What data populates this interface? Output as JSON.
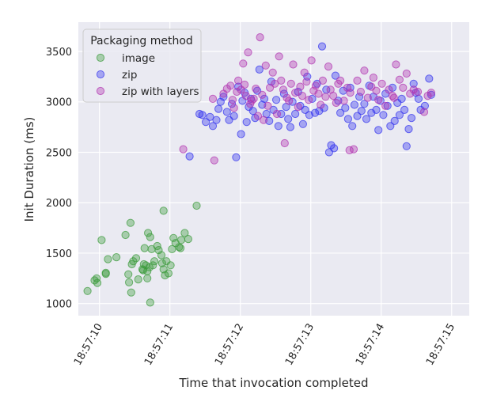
{
  "chart_data": {
    "type": "scatter",
    "xlabel": "Time that invocation completed",
    "ylabel": "Init Duration (ms)",
    "xlim": [
      9.7,
      15.25
    ],
    "ylim": [
      880,
      3790
    ],
    "x_unit": "seconds past 18:57:00",
    "x_ticks": [
      10,
      11,
      12,
      13,
      14,
      15
    ],
    "x_tick_labels": [
      "18:57:10",
      "18:57:11",
      "18:57:12",
      "18:57:13",
      "18:57:14",
      "18:57:15"
    ],
    "y_ticks": [
      1000,
      1500,
      2000,
      2500,
      3000,
      3500
    ],
    "y_tick_labels": [
      "1000",
      "1500",
      "2000",
      "2500",
      "3000",
      "3500"
    ],
    "grid": true,
    "legend": {
      "title": "Packaging method",
      "placement": "top-left"
    },
    "series": [
      {
        "name": "image",
        "color": "#3a9a3a",
        "points": [
          [
            9.83,
            1125
          ],
          [
            9.93,
            1230
          ],
          [
            9.96,
            1250
          ],
          [
            9.97,
            1205
          ],
          [
            10.03,
            1630
          ],
          [
            10.09,
            1295
          ],
          [
            10.12,
            1440
          ],
          [
            10.09,
            1305
          ],
          [
            10.24,
            1460
          ],
          [
            10.37,
            1680
          ],
          [
            10.41,
            1290
          ],
          [
            10.44,
            1800
          ],
          [
            10.42,
            1210
          ],
          [
            10.48,
            1420
          ],
          [
            10.46,
            1390
          ],
          [
            10.45,
            1110
          ],
          [
            10.52,
            1450
          ],
          [
            10.55,
            1240
          ],
          [
            10.61,
            1340
          ],
          [
            10.66,
            1380
          ],
          [
            10.63,
            1390
          ],
          [
            10.62,
            1330
          ],
          [
            10.64,
            1550
          ],
          [
            10.68,
            1250
          ],
          [
            10.68,
            1320
          ],
          [
            10.71,
            1360
          ],
          [
            10.69,
            1700
          ],
          [
            10.72,
            1660
          ],
          [
            10.72,
            1010
          ],
          [
            10.74,
            1540
          ],
          [
            10.76,
            1380
          ],
          [
            10.78,
            1420
          ],
          [
            10.82,
            1570
          ],
          [
            10.84,
            1530
          ],
          [
            10.88,
            1480
          ],
          [
            10.89,
            1400
          ],
          [
            10.91,
            1340
          ],
          [
            10.91,
            1920
          ],
          [
            10.93,
            1280
          ],
          [
            10.95,
            1420
          ],
          [
            10.98,
            1300
          ],
          [
            11.01,
            1380
          ],
          [
            11.03,
            1540
          ],
          [
            11.05,
            1650
          ],
          [
            11.08,
            1600
          ],
          [
            11.13,
            1560
          ],
          [
            11.15,
            1550
          ],
          [
            11.16,
            1630
          ],
          [
            11.21,
            1700
          ],
          [
            11.26,
            1640
          ],
          [
            11.38,
            1970
          ]
        ]
      },
      {
        "name": "zip",
        "color": "#3333ee",
        "points": [
          [
            11.28,
            2460
          ],
          [
            11.42,
            2880
          ],
          [
            11.46,
            2870
          ],
          [
            11.51,
            2800
          ],
          [
            11.57,
            2850
          ],
          [
            11.61,
            2760
          ],
          [
            11.66,
            2820
          ],
          [
            11.69,
            2930
          ],
          [
            11.72,
            3000
          ],
          [
            11.76,
            3050
          ],
          [
            11.81,
            2900
          ],
          [
            11.84,
            2820
          ],
          [
            11.88,
            2980
          ],
          [
            11.91,
            2860
          ],
          [
            11.94,
            2450
          ],
          [
            11.97,
            3150
          ],
          [
            12.01,
            2680
          ],
          [
            12.03,
            3010
          ],
          [
            12.06,
            3090
          ],
          [
            12.09,
            2800
          ],
          [
            12.12,
            2950
          ],
          [
            12.15,
            3030
          ],
          [
            12.18,
            2910
          ],
          [
            12.21,
            2840
          ],
          [
            12.24,
            3110
          ],
          [
            12.27,
            3320
          ],
          [
            12.31,
            2970
          ],
          [
            12.34,
            3030
          ],
          [
            12.37,
            2880
          ],
          [
            12.41,
            2810
          ],
          [
            12.44,
            3200
          ],
          [
            12.47,
            2920
          ],
          [
            12.51,
            3020
          ],
          [
            12.54,
            2760
          ],
          [
            12.58,
            2880
          ],
          [
            12.62,
            3080
          ],
          [
            12.65,
            2950
          ],
          [
            12.68,
            2830
          ],
          [
            12.71,
            2750
          ],
          [
            12.74,
            3000
          ],
          [
            12.78,
            2880
          ],
          [
            12.82,
            3100
          ],
          [
            12.85,
            2960
          ],
          [
            12.89,
            2780
          ],
          [
            12.92,
            2920
          ],
          [
            12.95,
            3250
          ],
          [
            12.98,
            2870
          ],
          [
            13.02,
            3030
          ],
          [
            13.06,
            2890
          ],
          [
            13.09,
            3180
          ],
          [
            13.12,
            2910
          ],
          [
            13.16,
            3550
          ],
          [
            13.19,
            2940
          ],
          [
            13.22,
            3120
          ],
          [
            13.26,
            2500
          ],
          [
            13.29,
            2570
          ],
          [
            13.33,
            2540
          ],
          [
            13.35,
            3260
          ],
          [
            13.39,
            3010
          ],
          [
            13.42,
            2890
          ],
          [
            13.46,
            3110
          ],
          [
            13.49,
            2940
          ],
          [
            13.53,
            2830
          ],
          [
            13.56,
            3140
          ],
          [
            13.59,
            2760
          ],
          [
            13.62,
            2970
          ],
          [
            13.66,
            2860
          ],
          [
            13.69,
            3050
          ],
          [
            13.72,
            2910
          ],
          [
            13.76,
            2980
          ],
          [
            13.79,
            2830
          ],
          [
            13.83,
            3160
          ],
          [
            13.86,
            2890
          ],
          [
            13.89,
            3050
          ],
          [
            13.93,
            2920
          ],
          [
            13.96,
            2720
          ],
          [
            13.99,
            3010
          ],
          [
            14.03,
            2870
          ],
          [
            14.06,
            3080
          ],
          [
            14.09,
            2960
          ],
          [
            14.13,
            2760
          ],
          [
            14.16,
            3140
          ],
          [
            14.19,
            2810
          ],
          [
            14.23,
            2990
          ],
          [
            14.26,
            2870
          ],
          [
            14.29,
            3030
          ],
          [
            14.33,
            2920
          ],
          [
            14.36,
            2560
          ],
          [
            14.39,
            2730
          ],
          [
            14.43,
            2840
          ],
          [
            14.46,
            3180
          ],
          [
            14.49,
            3090
          ],
          [
            14.53,
            3030
          ],
          [
            14.56,
            2920
          ],
          [
            14.62,
            2960
          ],
          [
            14.68,
            3230
          ],
          [
            14.71,
            3070
          ]
        ]
      },
      {
        "name": "zip with layers",
        "color": "#b033b0",
        "points": [
          [
            11.19,
            2530
          ],
          [
            11.61,
            3030
          ],
          [
            11.63,
            2420
          ],
          [
            11.76,
            3080
          ],
          [
            11.81,
            3130
          ],
          [
            11.86,
            3160
          ],
          [
            11.89,
            3020
          ],
          [
            11.91,
            2940
          ],
          [
            11.95,
            3100
          ],
          [
            11.97,
            3210
          ],
          [
            12.01,
            3120
          ],
          [
            12.04,
            3380
          ],
          [
            12.06,
            3170
          ],
          [
            12.08,
            3060
          ],
          [
            12.11,
            3490
          ],
          [
            12.14,
            2980
          ],
          [
            12.16,
            3010
          ],
          [
            12.19,
            3030
          ],
          [
            12.22,
            3130
          ],
          [
            12.25,
            2860
          ],
          [
            12.28,
            3640
          ],
          [
            12.31,
            3070
          ],
          [
            12.33,
            2820
          ],
          [
            12.36,
            3360
          ],
          [
            12.39,
            2960
          ],
          [
            12.42,
            3140
          ],
          [
            12.46,
            3290
          ],
          [
            12.49,
            3180
          ],
          [
            12.52,
            2880
          ],
          [
            12.55,
            3450
          ],
          [
            12.58,
            3210
          ],
          [
            12.61,
            3120
          ],
          [
            12.63,
            2590
          ],
          [
            12.66,
            3040
          ],
          [
            12.69,
            3010
          ],
          [
            12.72,
            3180
          ],
          [
            12.75,
            3370
          ],
          [
            12.78,
            3090
          ],
          [
            12.82,
            2950
          ],
          [
            12.85,
            3150
          ],
          [
            12.88,
            3060
          ],
          [
            12.91,
            3290
          ],
          [
            12.94,
            3200
          ],
          [
            12.97,
            3020
          ],
          [
            13.01,
            3410
          ],
          [
            13.04,
            3110
          ],
          [
            13.07,
            3160
          ],
          [
            13.11,
            3080
          ],
          [
            13.14,
            2970
          ],
          [
            13.17,
            3210
          ],
          [
            13.21,
            3050
          ],
          [
            13.25,
            3350
          ],
          [
            13.28,
            3120
          ],
          [
            13.32,
            3060
          ],
          [
            13.36,
            2990
          ],
          [
            13.39,
            3180
          ],
          [
            13.42,
            3210
          ],
          [
            13.47,
            3010
          ],
          [
            13.52,
            3140
          ],
          [
            13.56,
            3090
          ],
          [
            13.61,
            2530
          ],
          [
            13.66,
            3210
          ],
          [
            13.71,
            3100
          ],
          [
            13.76,
            3310
          ],
          [
            13.81,
            3040
          ],
          [
            13.86,
            3150
          ],
          [
            13.89,
            3240
          ],
          [
            13.93,
            3110
          ],
          [
            13.96,
            3020
          ],
          [
            14.01,
            3180
          ],
          [
            14.06,
            2960
          ],
          [
            14.11,
            3120
          ],
          [
            14.16,
            3060
          ],
          [
            14.21,
            3370
          ],
          [
            14.26,
            3220
          ],
          [
            14.31,
            3140
          ],
          [
            14.36,
            3280
          ],
          [
            14.41,
            3080
          ],
          [
            14.46,
            3120
          ],
          [
            14.52,
            3100
          ],
          [
            14.61,
            2900
          ],
          [
            14.66,
            3060
          ],
          [
            14.71,
            3090
          ],
          [
            13.55,
            2520
          ],
          [
            14.18,
            3040
          ]
        ]
      }
    ]
  }
}
